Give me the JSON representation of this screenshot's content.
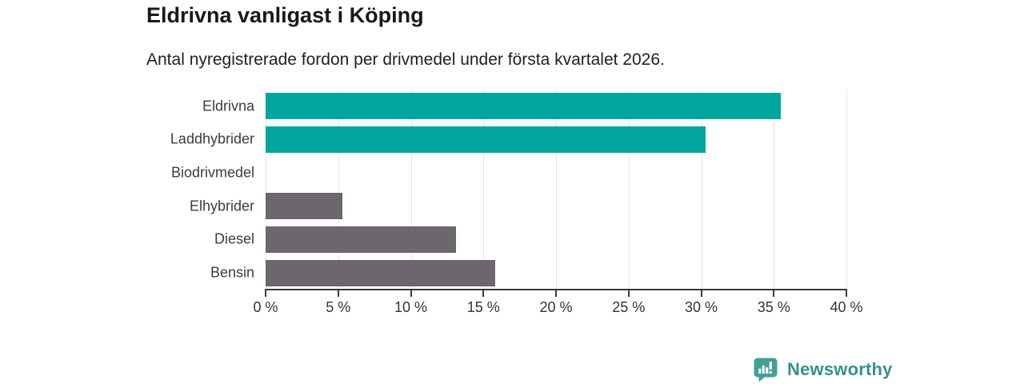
{
  "page": {
    "background": "#ffffff"
  },
  "chart_data": {
    "type": "bar",
    "orientation": "horizontal",
    "title": "Eldrivna vanligast i Köping",
    "subtitle": "Antal nyregistrerade fordon per drivmedel under första kvartalet 2026.",
    "categories": [
      "Eldrivna",
      "Laddhybrider",
      "Biodrivmedel",
      "Elhybrider",
      "Diesel",
      "Bensin"
    ],
    "values": [
      35.5,
      30.3,
      0,
      5.3,
      13.1,
      15.8
    ],
    "unit": "%",
    "bar_colors": [
      "#00a69b",
      "#00a69b",
      "#6b676d",
      "#6b676d",
      "#6b676d",
      "#6b676d"
    ],
    "accent_color": "#00a69b",
    "muted_color": "#6b676d",
    "xlim": [
      0,
      40
    ],
    "x_ticks": [
      {
        "value": 0,
        "label": "0 %"
      },
      {
        "value": 5,
        "label": "5 %"
      },
      {
        "value": 10,
        "label": "10 %"
      },
      {
        "value": 15,
        "label": "15 %"
      },
      {
        "value": 20,
        "label": "20 %"
      },
      {
        "value": 25,
        "label": "25 %"
      },
      {
        "value": 30,
        "label": "30 %"
      },
      {
        "value": 35,
        "label": "35 %"
      },
      {
        "value": 40,
        "label": "40 %"
      }
    ],
    "grid": "vertical",
    "gridline_color": "#e6e6e6",
    "axis_color": "#3a3a3a",
    "legend": "none"
  },
  "branding": {
    "logo_text": "Newsworthy",
    "logo_text_color": "#35918b",
    "logo_icon_color": "#3fa096",
    "logo_icon": "bar-chart-speech-bubble-icon"
  }
}
